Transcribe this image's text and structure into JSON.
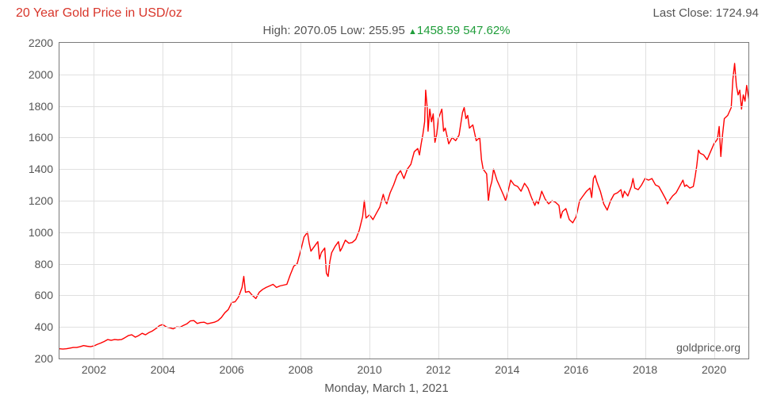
{
  "header": {
    "title": "20 Year Gold Price in USD/oz",
    "last_close_label": "Last Close:",
    "last_close_value": "1724.94"
  },
  "stats": {
    "high_label": "High:",
    "high_value": "2070.05",
    "low_label": "Low:",
    "low_value": "255.95",
    "change_value": "1458.59",
    "change_pct": "547.62%"
  },
  "chart": {
    "type": "line",
    "xlim": [
      2001,
      2021
    ],
    "ylim": [
      200,
      2200
    ],
    "xticks": [
      2002,
      2004,
      2006,
      2008,
      2010,
      2012,
      2014,
      2016,
      2018,
      2020
    ],
    "yticks": [
      200,
      400,
      600,
      800,
      1000,
      1200,
      1400,
      1600,
      1800,
      2000,
      2200
    ],
    "grid_color": "#e0e0e0",
    "border_color": "#7a7a7a",
    "background_color": "#ffffff",
    "line_color": "#ff0000",
    "line_width": 1.4,
    "watermark": "goldprice.org",
    "series": [
      [
        2001.0,
        262
      ],
      [
        2001.1,
        260
      ],
      [
        2001.2,
        262
      ],
      [
        2001.3,
        266
      ],
      [
        2001.4,
        270
      ],
      [
        2001.5,
        270
      ],
      [
        2001.6,
        275
      ],
      [
        2001.7,
        282
      ],
      [
        2001.8,
        278
      ],
      [
        2001.9,
        275
      ],
      [
        2002.0,
        280
      ],
      [
        2002.1,
        290
      ],
      [
        2002.2,
        298
      ],
      [
        2002.3,
        308
      ],
      [
        2002.4,
        320
      ],
      [
        2002.5,
        315
      ],
      [
        2002.6,
        320
      ],
      [
        2002.7,
        318
      ],
      [
        2002.8,
        320
      ],
      [
        2002.9,
        332
      ],
      [
        2003.0,
        345
      ],
      [
        2003.1,
        350
      ],
      [
        2003.2,
        335
      ],
      [
        2003.3,
        345
      ],
      [
        2003.4,
        360
      ],
      [
        2003.5,
        350
      ],
      [
        2003.6,
        365
      ],
      [
        2003.7,
        375
      ],
      [
        2003.8,
        390
      ],
      [
        2003.9,
        408
      ],
      [
        2004.0,
        415
      ],
      [
        2004.1,
        400
      ],
      [
        2004.2,
        395
      ],
      [
        2004.3,
        388
      ],
      [
        2004.4,
        400
      ],
      [
        2004.5,
        398
      ],
      [
        2004.6,
        410
      ],
      [
        2004.7,
        420
      ],
      [
        2004.8,
        438
      ],
      [
        2004.9,
        440
      ],
      [
        2005.0,
        422
      ],
      [
        2005.1,
        428
      ],
      [
        2005.2,
        430
      ],
      [
        2005.3,
        420
      ],
      [
        2005.4,
        425
      ],
      [
        2005.5,
        430
      ],
      [
        2005.6,
        440
      ],
      [
        2005.7,
        460
      ],
      [
        2005.8,
        490
      ],
      [
        2005.9,
        510
      ],
      [
        2006.0,
        555
      ],
      [
        2006.1,
        560
      ],
      [
        2006.2,
        590
      ],
      [
        2006.3,
        650
      ],
      [
        2006.35,
        720
      ],
      [
        2006.4,
        620
      ],
      [
        2006.5,
        625
      ],
      [
        2006.6,
        600
      ],
      [
        2006.7,
        580
      ],
      [
        2006.8,
        620
      ],
      [
        2006.9,
        638
      ],
      [
        2007.0,
        650
      ],
      [
        2007.1,
        660
      ],
      [
        2007.2,
        670
      ],
      [
        2007.3,
        650
      ],
      [
        2007.4,
        660
      ],
      [
        2007.5,
        665
      ],
      [
        2007.6,
        670
      ],
      [
        2007.7,
        730
      ],
      [
        2007.8,
        785
      ],
      [
        2007.9,
        800
      ],
      [
        2008.0,
        880
      ],
      [
        2008.1,
        970
      ],
      [
        2008.2,
        1000
      ],
      [
        2008.25,
        930
      ],
      [
        2008.3,
        880
      ],
      [
        2008.4,
        910
      ],
      [
        2008.5,
        940
      ],
      [
        2008.55,
        830
      ],
      [
        2008.6,
        870
      ],
      [
        2008.7,
        900
      ],
      [
        2008.75,
        740
      ],
      [
        2008.8,
        720
      ],
      [
        2008.85,
        815
      ],
      [
        2008.9,
        870
      ],
      [
        2009.0,
        910
      ],
      [
        2009.1,
        940
      ],
      [
        2009.15,
        880
      ],
      [
        2009.2,
        900
      ],
      [
        2009.3,
        950
      ],
      [
        2009.4,
        930
      ],
      [
        2009.5,
        935
      ],
      [
        2009.6,
        955
      ],
      [
        2009.7,
        1010
      ],
      [
        2009.8,
        1100
      ],
      [
        2009.85,
        1200
      ],
      [
        2009.9,
        1090
      ],
      [
        2010.0,
        1110
      ],
      [
        2010.1,
        1080
      ],
      [
        2010.2,
        1120
      ],
      [
        2010.3,
        1160
      ],
      [
        2010.4,
        1240
      ],
      [
        2010.45,
        1200
      ],
      [
        2010.5,
        1180
      ],
      [
        2010.6,
        1250
      ],
      [
        2010.7,
        1300
      ],
      [
        2010.8,
        1360
      ],
      [
        2010.9,
        1390
      ],
      [
        2011.0,
        1340
      ],
      [
        2011.1,
        1400
      ],
      [
        2011.2,
        1430
      ],
      [
        2011.3,
        1510
      ],
      [
        2011.4,
        1530
      ],
      [
        2011.45,
        1490
      ],
      [
        2011.5,
        1560
      ],
      [
        2011.55,
        1620
      ],
      [
        2011.6,
        1700
      ],
      [
        2011.63,
        1900
      ],
      [
        2011.68,
        1780
      ],
      [
        2011.7,
        1640
      ],
      [
        2011.75,
        1780
      ],
      [
        2011.8,
        1700
      ],
      [
        2011.85,
        1750
      ],
      [
        2011.9,
        1570
      ],
      [
        2011.95,
        1620
      ],
      [
        2012.0,
        1720
      ],
      [
        2012.1,
        1780
      ],
      [
        2012.15,
        1640
      ],
      [
        2012.2,
        1660
      ],
      [
        2012.3,
        1560
      ],
      [
        2012.4,
        1600
      ],
      [
        2012.5,
        1580
      ],
      [
        2012.6,
        1615
      ],
      [
        2012.7,
        1760
      ],
      [
        2012.75,
        1790
      ],
      [
        2012.8,
        1720
      ],
      [
        2012.85,
        1740
      ],
      [
        2012.9,
        1660
      ],
      [
        2013.0,
        1680
      ],
      [
        2013.1,
        1580
      ],
      [
        2013.2,
        1600
      ],
      [
        2013.25,
        1460
      ],
      [
        2013.3,
        1400
      ],
      [
        2013.4,
        1370
      ],
      [
        2013.45,
        1200
      ],
      [
        2013.5,
        1280
      ],
      [
        2013.55,
        1320
      ],
      [
        2013.6,
        1400
      ],
      [
        2013.7,
        1330
      ],
      [
        2013.8,
        1280
      ],
      [
        2013.9,
        1230
      ],
      [
        2013.95,
        1200
      ],
      [
        2014.0,
        1240
      ],
      [
        2014.1,
        1330
      ],
      [
        2014.2,
        1300
      ],
      [
        2014.3,
        1290
      ],
      [
        2014.4,
        1260
      ],
      [
        2014.5,
        1310
      ],
      [
        2014.6,
        1280
      ],
      [
        2014.7,
        1220
      ],
      [
        2014.8,
        1170
      ],
      [
        2014.85,
        1200
      ],
      [
        2014.9,
        1180
      ],
      [
        2015.0,
        1260
      ],
      [
        2015.1,
        1210
      ],
      [
        2015.2,
        1180
      ],
      [
        2015.3,
        1200
      ],
      [
        2015.4,
        1190
      ],
      [
        2015.5,
        1170
      ],
      [
        2015.55,
        1090
      ],
      [
        2015.6,
        1130
      ],
      [
        2015.7,
        1150
      ],
      [
        2015.8,
        1080
      ],
      [
        2015.9,
        1060
      ],
      [
        2016.0,
        1100
      ],
      [
        2016.1,
        1200
      ],
      [
        2016.2,
        1230
      ],
      [
        2016.3,
        1260
      ],
      [
        2016.4,
        1280
      ],
      [
        2016.45,
        1220
      ],
      [
        2016.5,
        1340
      ],
      [
        2016.55,
        1360
      ],
      [
        2016.6,
        1320
      ],
      [
        2016.7,
        1260
      ],
      [
        2016.8,
        1180
      ],
      [
        2016.9,
        1140
      ],
      [
        2017.0,
        1200
      ],
      [
        2017.1,
        1240
      ],
      [
        2017.2,
        1250
      ],
      [
        2017.3,
        1270
      ],
      [
        2017.35,
        1220
      ],
      [
        2017.4,
        1260
      ],
      [
        2017.5,
        1230
      ],
      [
        2017.6,
        1290
      ],
      [
        2017.65,
        1340
      ],
      [
        2017.7,
        1280
      ],
      [
        2017.8,
        1270
      ],
      [
        2017.9,
        1300
      ],
      [
        2018.0,
        1340
      ],
      [
        2018.1,
        1330
      ],
      [
        2018.2,
        1340
      ],
      [
        2018.3,
        1300
      ],
      [
        2018.4,
        1290
      ],
      [
        2018.5,
        1250
      ],
      [
        2018.6,
        1210
      ],
      [
        2018.65,
        1180
      ],
      [
        2018.7,
        1200
      ],
      [
        2018.8,
        1230
      ],
      [
        2018.9,
        1250
      ],
      [
        2019.0,
        1290
      ],
      [
        2019.1,
        1330
      ],
      [
        2019.15,
        1290
      ],
      [
        2019.2,
        1300
      ],
      [
        2019.3,
        1280
      ],
      [
        2019.4,
        1290
      ],
      [
        2019.45,
        1350
      ],
      [
        2019.5,
        1420
      ],
      [
        2019.55,
        1520
      ],
      [
        2019.6,
        1500
      ],
      [
        2019.7,
        1490
      ],
      [
        2019.8,
        1460
      ],
      [
        2019.9,
        1510
      ],
      [
        2020.0,
        1560
      ],
      [
        2020.1,
        1590
      ],
      [
        2020.15,
        1670
      ],
      [
        2020.2,
        1480
      ],
      [
        2020.25,
        1620
      ],
      [
        2020.3,
        1720
      ],
      [
        2020.4,
        1740
      ],
      [
        2020.5,
        1790
      ],
      [
        2020.55,
        1970
      ],
      [
        2020.6,
        2070
      ],
      [
        2020.65,
        1930
      ],
      [
        2020.7,
        1870
      ],
      [
        2020.75,
        1900
      ],
      [
        2020.8,
        1780
      ],
      [
        2020.85,
        1870
      ],
      [
        2020.9,
        1830
      ],
      [
        2020.95,
        1930
      ],
      [
        2021.0,
        1860
      ],
      [
        2021.05,
        1800
      ],
      [
        2021.1,
        1750
      ],
      [
        2021.15,
        1800
      ],
      [
        2021.17,
        1724
      ]
    ]
  },
  "footer": {
    "date_caption": "Monday, March 1, 2021"
  },
  "colors": {
    "title": "#d8352a",
    "text": "#555555",
    "up": "#1f9d3a"
  }
}
